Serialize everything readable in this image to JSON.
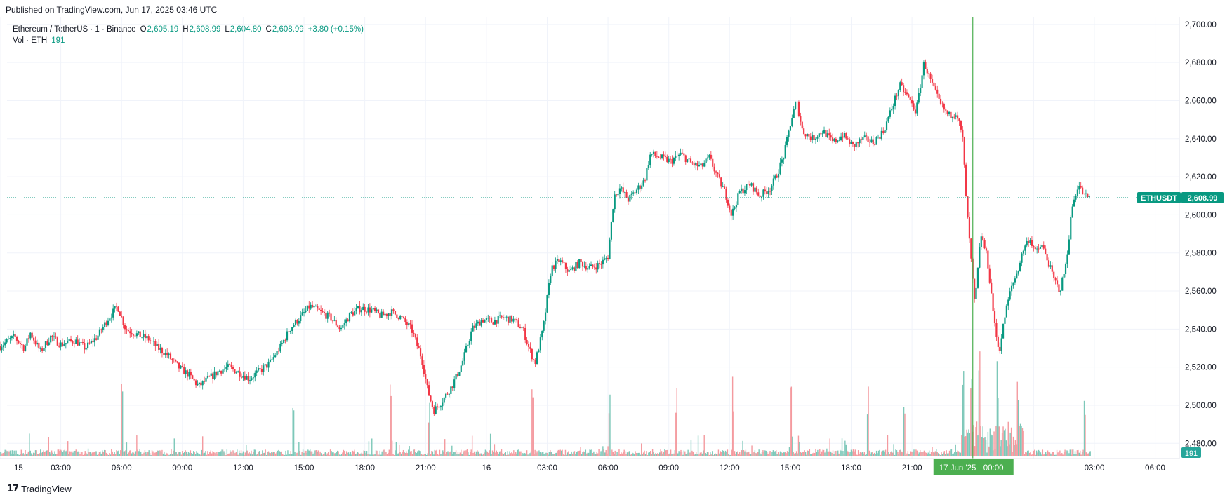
{
  "header": {
    "published": "Published on TradingView.com, Jun 17, 2025 03:46 UTC"
  },
  "legend": {
    "symbol": "Ethereum / TetherUS · 1 · Binance",
    "open_label": "O",
    "open": "2,605.19",
    "high_label": "H",
    "high": "2,608.99",
    "low_label": "L",
    "low": "2,604.80",
    "close_label": "C",
    "close": "2,608.99",
    "change": "+3.80 (+0.15%)",
    "vol_label": "Vol · ETH",
    "vol": "191"
  },
  "price_tag": {
    "symbol": "ETHUSDT",
    "price": "2,608.99"
  },
  "vol_tag": "191",
  "crosshair_label": {
    "date": "17 Jun '25",
    "time": "00:00"
  },
  "footer": {
    "logo": "17",
    "brand": "TradingView"
  },
  "colors": {
    "up": "#089981",
    "down": "#f23645",
    "cross": "#4caf50",
    "grid": "#f0f3fa",
    "vol_up": "#7dc8b9",
    "vol_down": "#f49a9f"
  },
  "chart_data": {
    "type": "candlestick",
    "title": "Ethereum / TetherUS · 1 · Binance",
    "ylim": [
      2472,
      2704
    ],
    "y_ticks": [
      2480,
      2500,
      2520,
      2540,
      2560,
      2580,
      2600,
      2620,
      2640,
      2660,
      2680,
      2700
    ],
    "y_tick_labels": [
      "2,480.00",
      "2,500.00",
      "2,520.00",
      "2,540.00",
      "2,560.00",
      "2,580.00",
      "2,600.00",
      "2,620.00",
      "2,640.00",
      "2,660.00",
      "2,680.00",
      "2,700.00"
    ],
    "x_ticks": [
      0,
      3,
      6,
      9,
      12,
      15,
      18,
      21,
      24,
      27,
      30,
      33,
      36,
      39,
      42,
      45,
      48,
      51,
      54,
      57
    ],
    "x_tick_labels": [
      "15",
      "03:00",
      "06:00",
      "09:00",
      "12:00",
      "15:00",
      "18:00",
      "21:00",
      "16",
      "03:00",
      "06:00",
      "09:00",
      "12:00",
      "15:00",
      "18:00",
      "21:00",
      "",
      "",
      "03:00",
      "06:00"
    ],
    "x_unit": "hours since 15 Jun 2025 00:00 UTC",
    "xlim": [
      0,
      57.5
    ],
    "last_price": 2608.99,
    "crosshair_x": 48,
    "price_path": [
      [
        0.0,
        2531
      ],
      [
        0.7,
        2536
      ],
      [
        1.2,
        2530
      ],
      [
        1.5,
        2538
      ],
      [
        2.0,
        2528
      ],
      [
        2.5,
        2536
      ],
      [
        3.0,
        2532
      ],
      [
        3.7,
        2534
      ],
      [
        4.2,
        2530
      ],
      [
        4.8,
        2536
      ],
      [
        5.3,
        2545
      ],
      [
        5.8,
        2552
      ],
      [
        6.2,
        2540
      ],
      [
        6.8,
        2537
      ],
      [
        7.3,
        2535
      ],
      [
        7.8,
        2530
      ],
      [
        8.3,
        2526
      ],
      [
        8.8,
        2520
      ],
      [
        9.3,
        2516
      ],
      [
        9.8,
        2510
      ],
      [
        10.3,
        2514
      ],
      [
        10.8,
        2518
      ],
      [
        11.3,
        2520
      ],
      [
        11.8,
        2517
      ],
      [
        12.3,
        2514
      ],
      [
        12.8,
        2518
      ],
      [
        13.3,
        2522
      ],
      [
        13.8,
        2530
      ],
      [
        14.3,
        2540
      ],
      [
        14.8,
        2546
      ],
      [
        15.3,
        2552
      ],
      [
        15.8,
        2549
      ],
      [
        16.3,
        2546
      ],
      [
        16.8,
        2540
      ],
      [
        17.3,
        2548
      ],
      [
        17.8,
        2551
      ],
      [
        18.3,
        2550
      ],
      [
        18.8,
        2547
      ],
      [
        19.3,
        2549
      ],
      [
        19.8,
        2546
      ],
      [
        20.3,
        2540
      ],
      [
        20.8,
        2525
      ],
      [
        21.1,
        2508
      ],
      [
        21.4,
        2497
      ],
      [
        21.8,
        2502
      ],
      [
        22.3,
        2510
      ],
      [
        22.8,
        2522
      ],
      [
        23.3,
        2540
      ],
      [
        23.8,
        2545
      ],
      [
        24.3,
        2544
      ],
      [
        24.8,
        2546
      ],
      [
        25.3,
        2545
      ],
      [
        25.8,
        2540
      ],
      [
        26.1,
        2530
      ],
      [
        26.4,
        2522
      ],
      [
        26.8,
        2540
      ],
      [
        27.2,
        2572
      ],
      [
        27.6,
        2576
      ],
      [
        28.1,
        2570
      ],
      [
        28.6,
        2575
      ],
      [
        29.1,
        2572
      ],
      [
        29.6,
        2574
      ],
      [
        30.0,
        2578
      ],
      [
        30.3,
        2610
      ],
      [
        30.6,
        2614
      ],
      [
        31.0,
        2608
      ],
      [
        31.4,
        2613
      ],
      [
        31.8,
        2618
      ],
      [
        32.1,
        2632
      ],
      [
        32.6,
        2630
      ],
      [
        33.1,
        2628
      ],
      [
        33.6,
        2632
      ],
      [
        34.1,
        2627
      ],
      [
        34.6,
        2625
      ],
      [
        35.0,
        2630
      ],
      [
        35.4,
        2620
      ],
      [
        35.8,
        2611
      ],
      [
        36.1,
        2600
      ],
      [
        36.5,
        2612
      ],
      [
        37.0,
        2616
      ],
      [
        37.5,
        2610
      ],
      [
        38.0,
        2614
      ],
      [
        38.3,
        2620
      ],
      [
        38.7,
        2632
      ],
      [
        39.0,
        2648
      ],
      [
        39.3,
        2660
      ],
      [
        39.6,
        2644
      ],
      [
        40.1,
        2640
      ],
      [
        40.6,
        2644
      ],
      [
        41.1,
        2638
      ],
      [
        41.6,
        2642
      ],
      [
        42.1,
        2636
      ],
      [
        42.6,
        2640
      ],
      [
        43.1,
        2638
      ],
      [
        43.6,
        2644
      ],
      [
        44.0,
        2656
      ],
      [
        44.4,
        2668
      ],
      [
        44.8,
        2662
      ],
      [
        45.2,
        2654
      ],
      [
        45.6,
        2680
      ],
      [
        46.0,
        2668
      ],
      [
        46.4,
        2658
      ],
      [
        46.8,
        2652
      ],
      [
        47.2,
        2654
      ],
      [
        47.5,
        2640
      ],
      [
        47.7,
        2604
      ],
      [
        47.9,
        2578
      ],
      [
        48.1,
        2552
      ],
      [
        48.4,
        2590
      ],
      [
        48.7,
        2578
      ],
      [
        48.9,
        2560
      ],
      [
        49.1,
        2540
      ],
      [
        49.3,
        2528
      ],
      [
        49.6,
        2548
      ],
      [
        49.9,
        2562
      ],
      [
        50.2,
        2570
      ],
      [
        50.5,
        2582
      ],
      [
        50.8,
        2588
      ],
      [
        51.1,
        2580
      ],
      [
        51.4,
        2584
      ],
      [
        51.7,
        2576
      ],
      [
        52.0,
        2566
      ],
      [
        52.3,
        2560
      ],
      [
        52.6,
        2574
      ],
      [
        52.9,
        2604
      ],
      [
        53.2,
        2616
      ],
      [
        53.5,
        2610
      ],
      [
        53.8,
        2608.99
      ]
    ],
    "volume_spike_x": [
      6,
      14.5,
      19.3,
      21.2,
      26.3,
      30.1,
      33.4,
      36.2,
      39.0,
      42.8,
      44.6,
      47.5,
      47.9,
      48.3,
      49.2,
      50.2,
      53.5
    ]
  }
}
